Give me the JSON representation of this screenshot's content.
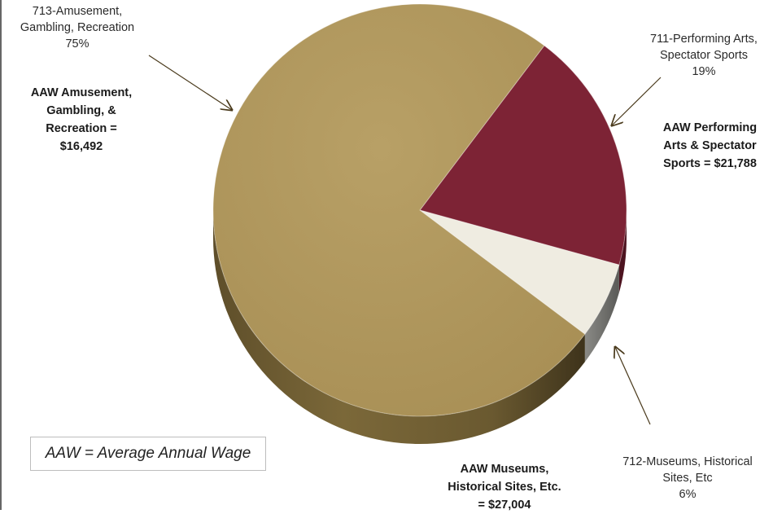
{
  "chart_data": {
    "type": "pie",
    "title": "",
    "slices": [
      {
        "label_lines": [
          "713-Amusement,",
          "Gambling, Recreation",
          "75%"
        ],
        "name": "713-Amusement, Gambling, Recreation",
        "value": 75,
        "color": "#b39a5f"
      },
      {
        "label_lines": [
          "711-Performing Arts,",
          "Spectator Sports",
          "19%"
        ],
        "name": "711-Performing Arts, Spectator Sports",
        "value": 19,
        "color": "#7d2335"
      },
      {
        "label_lines": [
          "712-Museums, Historical",
          "Sites, Etc",
          "6%"
        ],
        "name": "712-Museums, Historical Sites, Etc",
        "value": 6,
        "color": "#efece1"
      }
    ],
    "annotations": [
      {
        "name": "aaw-amusement",
        "lines": [
          "AAW Amusement,",
          "Gambling,  &",
          "Recreation =",
          "$16,492"
        ]
      },
      {
        "name": "aaw-performing",
        "lines": [
          "AAW Performing",
          "Arts & Spectator",
          "Sports = $21,788"
        ]
      },
      {
        "name": "aaw-museums",
        "lines": [
          "AAW Museums,",
          "Historical Sites, Etc.",
          "= $27,004"
        ]
      }
    ],
    "note": "AAW = Average Annual Wage",
    "style": "3d"
  }
}
